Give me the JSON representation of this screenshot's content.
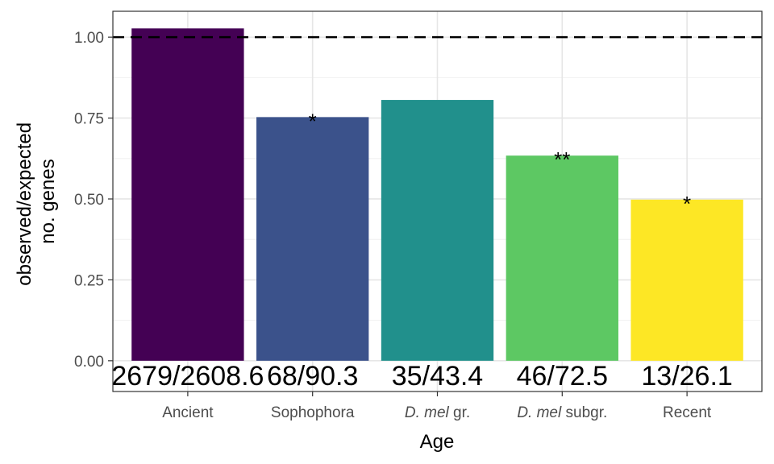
{
  "chart_data": {
    "type": "bar",
    "xlabel": "Age",
    "ylabel_line1": "observed/expected",
    "ylabel_line2": "no. genes",
    "categories": [
      {
        "name": "Ancient",
        "italic": "",
        "rest": "Ancient"
      },
      {
        "name": "Sophophora",
        "italic": "",
        "rest": "Sophophora"
      },
      {
        "name": "D. mel gr.",
        "italic": "D. mel",
        "rest": " gr."
      },
      {
        "name": "D. mel subgr.",
        "italic": "D. mel",
        "rest": " subgr."
      },
      {
        "name": "Recent",
        "italic": "",
        "rest": "Recent"
      }
    ],
    "values": [
      1.027,
      0.753,
      0.806,
      0.634,
      0.498
    ],
    "colors": [
      "#440154",
      "#3B528B",
      "#21908C",
      "#5DC863",
      "#FDE725"
    ],
    "count_labels": [
      "2679/2608.6",
      "68/90.3",
      "35/43.4",
      "46/72.5",
      "13/26.1"
    ],
    "significance": [
      "",
      "*",
      "",
      "**",
      "*"
    ],
    "reference_line": 1.0,
    "ylim": [
      -0.095,
      1.08
    ],
    "yticks": [
      "0.00",
      "0.25",
      "0.50",
      "0.75",
      "1.00"
    ],
    "ytick_values": [
      0,
      0.25,
      0.5,
      0.75,
      1.0
    ],
    "grid": true,
    "legend": "none"
  }
}
